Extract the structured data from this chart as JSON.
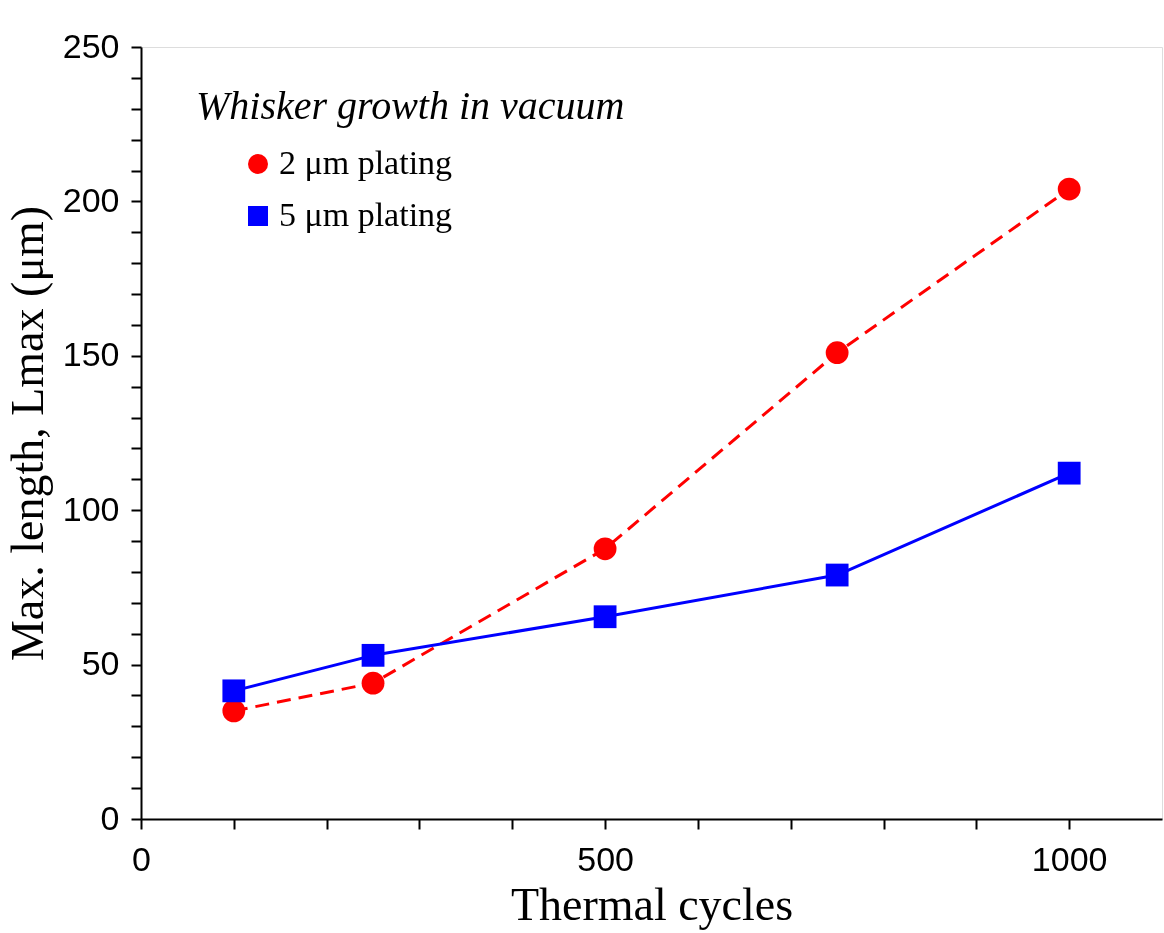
{
  "chart_data": {
    "type": "line",
    "xlabel": "Thermal cycles",
    "ylabel": "Max. length, Lmax (μm)",
    "annotations": [
      "Whisker growth in vacuum"
    ],
    "x": [
      100,
      250,
      500,
      750,
      1000
    ],
    "series": [
      {
        "name": "2 μm plating",
        "color": "#ff0000",
        "marker": "circle",
        "line_style": "dashed",
        "values": [
          35,
          44,
          87.5,
          151,
          204
        ]
      },
      {
        "name": "5 μm plating",
        "color": "#0000ff",
        "marker": "square",
        "line_style": "solid",
        "values": [
          41.5,
          53,
          65.5,
          79,
          112
        ]
      }
    ],
    "xlim": [
      0,
      1100
    ],
    "xticks": [
      0,
      {
        "value": 100,
        "label": null
      },
      {
        "value": 200,
        "label": null
      },
      {
        "value": 300,
        "label": null
      },
      {
        "value": 400,
        "label": null
      },
      500,
      {
        "value": 600,
        "label": null
      },
      {
        "value": 700,
        "label": null
      },
      {
        "value": 800,
        "label": null
      },
      {
        "value": 900,
        "label": null
      },
      1000
    ],
    "ylim": [
      0,
      250
    ],
    "yticks": [
      0,
      {
        "value": 10,
        "label": null
      },
      {
        "value": 20,
        "label": null
      },
      {
        "value": 30,
        "label": null
      },
      {
        "value": 40,
        "label": null
      },
      50,
      {
        "value": 60,
        "label": null
      },
      {
        "value": 70,
        "label": null
      },
      {
        "value": 80,
        "label": null
      },
      {
        "value": 90,
        "label": null
      },
      100,
      {
        "value": 110,
        "label": null
      },
      {
        "value": 120,
        "label": null
      },
      {
        "value": 130,
        "label": null
      },
      {
        "value": 140,
        "label": null
      },
      150,
      {
        "value": 160,
        "label": null
      },
      {
        "value": 170,
        "label": null
      },
      {
        "value": 180,
        "label": null
      },
      {
        "value": 190,
        "label": null
      },
      200,
      {
        "value": 210,
        "label": null
      },
      {
        "value": 220,
        "label": null
      },
      {
        "value": 230,
        "label": null
      },
      {
        "value": 240,
        "label": null
      },
      250
    ],
    "grid": false,
    "legend": "top left"
  }
}
